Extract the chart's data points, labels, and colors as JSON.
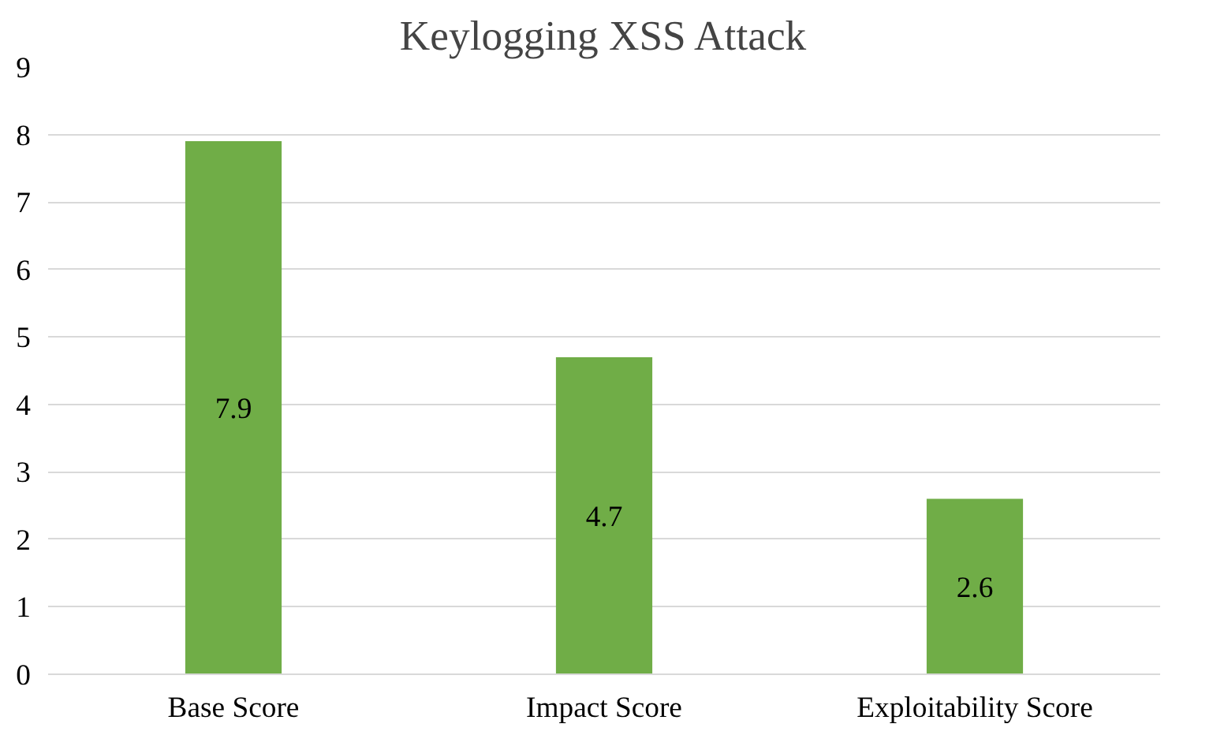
{
  "chart_data": {
    "type": "bar",
    "title": "Keylogging XSS Attack",
    "categories": [
      "Base Score",
      "Impact Score",
      "Exploitability Score"
    ],
    "values": [
      7.9,
      4.7,
      2.6
    ],
    "color": "#70ad47",
    "ylim": [
      0,
      9
    ],
    "yticks": [
      0,
      1,
      2,
      3,
      4,
      5,
      6,
      7,
      8,
      9
    ],
    "grid": "y",
    "data_labels": true
  }
}
